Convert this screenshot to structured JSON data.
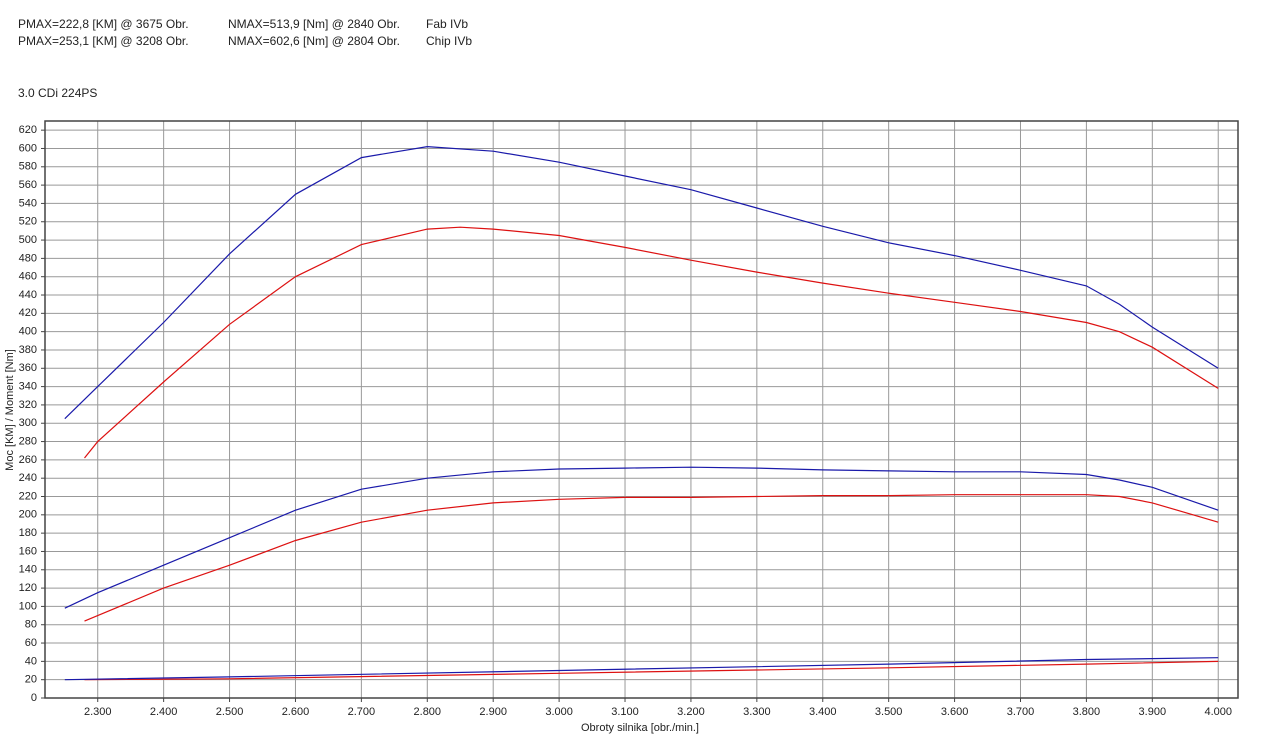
{
  "chart_data": {
    "type": "line",
    "subtitle": "3.0 CDi 224PS",
    "x_label": "Obroty silnika [obr./min.]",
    "y_label": "Moc [KM] / Moment [Nm]",
    "grid": true,
    "xlim": [
      2220,
      4030
    ],
    "ylim": [
      0,
      630
    ],
    "xticks": [
      {
        "value": 2300,
        "label": "2.300"
      },
      {
        "value": 2400,
        "label": "2.400"
      },
      {
        "value": 2500,
        "label": "2.500"
      },
      {
        "value": 2600,
        "label": "2.600"
      },
      {
        "value": 2700,
        "label": "2.700"
      },
      {
        "value": 2800,
        "label": "2.800"
      },
      {
        "value": 2900,
        "label": "2.900"
      },
      {
        "value": 3000,
        "label": "3.000"
      },
      {
        "value": 3100,
        "label": "3.100"
      },
      {
        "value": 3200,
        "label": "3.200"
      },
      {
        "value": 3300,
        "label": "3.300"
      },
      {
        "value": 3400,
        "label": "3.400"
      },
      {
        "value": 3500,
        "label": "3.500"
      },
      {
        "value": 3600,
        "label": "3.600"
      },
      {
        "value": 3700,
        "label": "3.700"
      },
      {
        "value": 3800,
        "label": "3.800"
      },
      {
        "value": 3900,
        "label": "3.900"
      },
      {
        "value": 4000,
        "label": "4.000"
      }
    ],
    "yticks": [
      0,
      20,
      40,
      60,
      80,
      100,
      120,
      140,
      160,
      180,
      200,
      220,
      240,
      260,
      280,
      300,
      320,
      340,
      360,
      380,
      400,
      420,
      440,
      460,
      480,
      500,
      520,
      540,
      560,
      580,
      600,
      620
    ],
    "groups": [
      {
        "name": "Fab IVb",
        "color": "#dd1111",
        "pmax": "PMAX=222,8 [KM] @ 3675 Obr.",
        "nmax": "NMAX=513,9 [Nm] @ 2840 Obr.",
        "torque": {
          "x": [
            2280,
            2300,
            2400,
            2500,
            2600,
            2700,
            2800,
            2850,
            2900,
            3000,
            3100,
            3200,
            3300,
            3400,
            3500,
            3600,
            3700,
            3800,
            3850,
            3900,
            4000
          ],
          "values": [
            262,
            280,
            345,
            408,
            460,
            495,
            512,
            514,
            512,
            505,
            492,
            478,
            465,
            453,
            442,
            432,
            422,
            410,
            400,
            383,
            338
          ]
        },
        "power": {
          "x": [
            2280,
            2300,
            2400,
            2500,
            2600,
            2700,
            2800,
            2900,
            3000,
            3100,
            3200,
            3300,
            3400,
            3500,
            3600,
            3700,
            3800,
            3850,
            3900,
            4000
          ],
          "values": [
            84,
            90,
            120,
            145,
            172,
            192,
            205,
            213,
            217,
            219,
            219,
            220,
            221,
            221,
            222,
            222,
            222,
            220,
            213,
            192
          ]
        },
        "loss": {
          "x": [
            2280,
            2500,
            3000,
            3500,
            3800,
            4000
          ],
          "values": [
            20,
            21,
            27,
            33,
            37,
            40
          ]
        }
      },
      {
        "name": "Chip IVb",
        "color": "#1a1aaa",
        "pmax": "PMAX=253,1 [KM] @ 3208 Obr.",
        "nmax": "NMAX=602,6 [Nm] @ 2804 Obr.",
        "torque": {
          "x": [
            2250,
            2300,
            2400,
            2500,
            2600,
            2700,
            2800,
            2900,
            3000,
            3100,
            3200,
            3300,
            3400,
            3500,
            3600,
            3700,
            3800,
            3850,
            3900,
            4000
          ],
          "values": [
            305,
            340,
            410,
            485,
            550,
            590,
            602,
            597,
            585,
            570,
            555,
            535,
            515,
            497,
            483,
            467,
            450,
            430,
            405,
            360
          ]
        },
        "power": {
          "x": [
            2250,
            2300,
            2400,
            2500,
            2600,
            2700,
            2800,
            2900,
            3000,
            3100,
            3200,
            3300,
            3400,
            3500,
            3600,
            3700,
            3800,
            3850,
            3900,
            4000
          ],
          "values": [
            98,
            115,
            145,
            175,
            205,
            228,
            240,
            247,
            250,
            251,
            252,
            251,
            249,
            248,
            247,
            247,
            244,
            238,
            230,
            205
          ]
        },
        "loss": {
          "x": [
            2250,
            2500,
            3000,
            3500,
            3800,
            4000
          ],
          "values": [
            20,
            23,
            30,
            37,
            42,
            44
          ]
        }
      }
    ]
  }
}
